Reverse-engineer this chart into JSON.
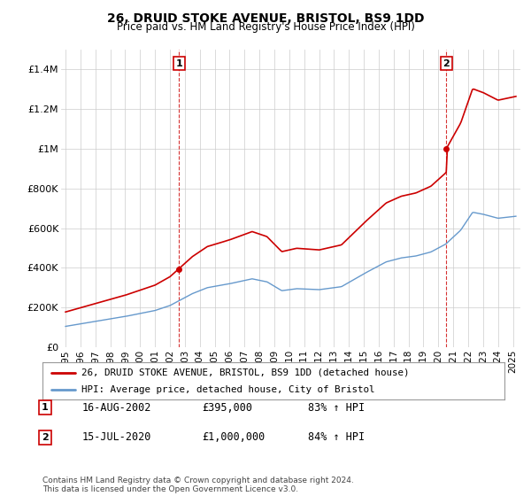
{
  "title": "26, DRUID STOKE AVENUE, BRISTOL, BS9 1DD",
  "subtitle": "Price paid vs. HM Land Registry's House Price Index (HPI)",
  "hpi_label": "HPI: Average price, detached house, City of Bristol",
  "property_label": "26, DRUID STOKE AVENUE, BRISTOL, BS9 1DD (detached house)",
  "annotation1_text": "1",
  "annotation1_date": "16-AUG-2002",
  "annotation1_price": "£395,000",
  "annotation1_hpi": "83% ↑ HPI",
  "annotation2_text": "2",
  "annotation2_date": "15-JUL-2020",
  "annotation2_price": "£1,000,000",
  "annotation2_hpi": "84% ↑ HPI",
  "footer": "Contains HM Land Registry data © Crown copyright and database right 2024.\nThis data is licensed under the Open Government Licence v3.0.",
  "property_color": "#cc0000",
  "hpi_color": "#6699cc",
  "background_color": "#ffffff",
  "grid_color": "#cccccc",
  "ylim": [
    0,
    1500000
  ],
  "yticks": [
    0,
    200000,
    400000,
    600000,
    800000,
    1000000,
    1200000,
    1400000
  ],
  "ytick_labels": [
    "£0",
    "£200K",
    "£400K",
    "£600K",
    "£800K",
    "£1M",
    "£1.2M",
    "£1.4M"
  ],
  "sale1_year": 2002.62,
  "sale1_price": 395000,
  "sale2_year": 2020.54,
  "sale2_price": 1000000,
  "vline1_year": 2002.62,
  "vline2_year": 2020.54,
  "xlim_left": 1994.7,
  "xlim_right": 2025.5
}
